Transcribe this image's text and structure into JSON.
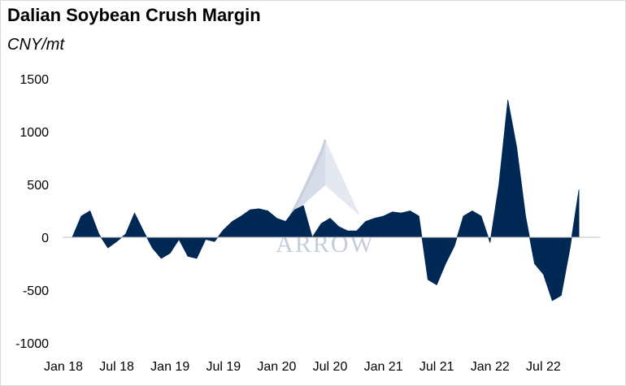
{
  "chart_data": {
    "type": "area",
    "title": "Dalian Soybean Crush Margin",
    "subtitle": "CNY/mt",
    "ylim": [
      -1000,
      1500
    ],
    "y_ticks": [
      1500,
      1000,
      500,
      0,
      -500,
      -1000
    ],
    "x_tick_labels": [
      "Jan 18",
      "Jul 18",
      "Jan 19",
      "Jul 19",
      "Jan 20",
      "Jul 20",
      "Jan 21",
      "Jul 21",
      "Jan 22",
      "Jul 22"
    ],
    "x_range": [
      "2017-12",
      "2022-11"
    ],
    "grid": false,
    "legend": "none",
    "watermark": "ARROW",
    "series": [
      {
        "color": "#002855",
        "x": [
          "2018-01",
          "2018-02",
          "2018-03",
          "2018-04",
          "2018-05",
          "2018-06",
          "2018-07",
          "2018-08",
          "2018-09",
          "2018-10",
          "2018-11",
          "2018-12",
          "2019-01",
          "2019-02",
          "2019-03",
          "2019-04",
          "2019-05",
          "2019-06",
          "2019-07",
          "2019-08",
          "2019-09",
          "2019-10",
          "2019-11",
          "2019-12",
          "2020-01",
          "2020-02",
          "2020-03",
          "2020-04",
          "2020-05",
          "2020-06",
          "2020-07",
          "2020-08",
          "2020-09",
          "2020-10",
          "2020-11",
          "2020-12",
          "2021-01",
          "2021-02",
          "2021-03",
          "2021-04",
          "2021-05",
          "2021-06",
          "2021-07",
          "2021-08",
          "2021-09",
          "2021-10",
          "2021-11",
          "2021-12",
          "2022-01",
          "2022-02",
          "2022-03",
          "2022-04",
          "2022-05",
          "2022-06",
          "2022-07",
          "2022-08",
          "2022-09",
          "2022-10",
          "2022-11"
        ],
        "values": [
          0,
          0,
          200,
          250,
          30,
          -100,
          -40,
          30,
          230,
          60,
          -100,
          -200,
          -150,
          -20,
          -180,
          -200,
          -20,
          -40,
          70,
          150,
          200,
          260,
          270,
          250,
          180,
          150,
          260,
          300,
          0,
          130,
          180,
          100,
          60,
          60,
          150,
          180,
          200,
          240,
          230,
          250,
          200,
          -400,
          -450,
          -250,
          -80,
          200,
          250,
          200,
          -50,
          500,
          1300,
          850,
          200,
          -250,
          -350,
          -600,
          -550,
          -100,
          450
        ]
      }
    ]
  }
}
